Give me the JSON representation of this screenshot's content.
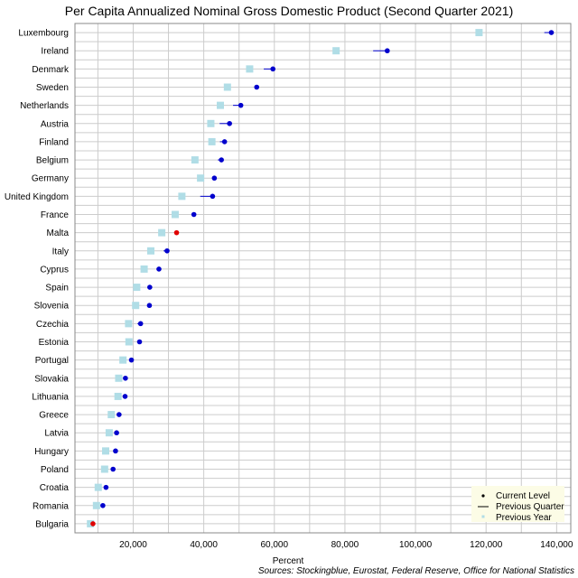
{
  "chart_data": {
    "type": "scatter",
    "title": "Per Capita Annualized Nominal Gross Domestic Product (Second Quarter 2021)",
    "xlabel": "Percent",
    "source": "Sources: Stockingblue, Eurostat, Federal Reserve, Office for National Statistics",
    "xlim": [
      3500,
      144000
    ],
    "xticks": [
      20000,
      40000,
      60000,
      80000,
      100000,
      120000,
      140000
    ],
    "xtick_labels": [
      "20,000",
      "40,000",
      "60,000",
      "80,000",
      "100,000",
      "120,000",
      "140,000"
    ],
    "grid": true,
    "legend_position": "bottom-right",
    "legend": [
      "Current Level",
      "Previous Quarter",
      "Previous Year"
    ],
    "colors": {
      "current": "#0000cd",
      "current_highlight": "#e00000",
      "previous_quarter": "#0000cd",
      "previous_year": "#b0dde6",
      "grid": "#cccccc"
    },
    "categories": [
      "Luxembourg",
      "Ireland",
      "Denmark",
      "Sweden",
      "Netherlands",
      "Austria",
      "Finland",
      "Belgium",
      "Germany",
      "United Kingdom",
      "France",
      "Malta",
      "Italy",
      "Cyprus",
      "Spain",
      "Slovenia",
      "Czechia",
      "Estonia",
      "Portugal",
      "Slovakia",
      "Lithuania",
      "Greece",
      "Latvia",
      "Hungary",
      "Poland",
      "Croatia",
      "Romania",
      "Bulgaria"
    ],
    "current_level": [
      138500,
      92000,
      59600,
      55000,
      50500,
      47300,
      45900,
      45000,
      43000,
      42500,
      37200,
      32300,
      29600,
      27300,
      24700,
      24600,
      22100,
      21800,
      19500,
      17800,
      17700,
      16000,
      15300,
      15000,
      14300,
      12300,
      11400,
      8600
    ],
    "previous_quarter": [
      136500,
      88000,
      57000,
      54300,
      48300,
      44500,
      44600,
      44000,
      42700,
      39000,
      36600,
      32000,
      28600,
      26600,
      24200,
      24000,
      21200,
      21300,
      19000,
      17300,
      17100,
      15400,
      14800,
      14400,
      13800,
      11900,
      11000,
      8400
    ],
    "previous_year": [
      118000,
      77500,
      53000,
      46700,
      44700,
      42000,
      42300,
      37500,
      39100,
      33800,
      31900,
      28100,
      25000,
      23100,
      21000,
      20700,
      18700,
      18800,
      17100,
      15900,
      15700,
      13800,
      13200,
      12200,
      11900,
      10100,
      9600,
      7900
    ],
    "highlight": [
      "Malta",
      "Bulgaria"
    ]
  }
}
